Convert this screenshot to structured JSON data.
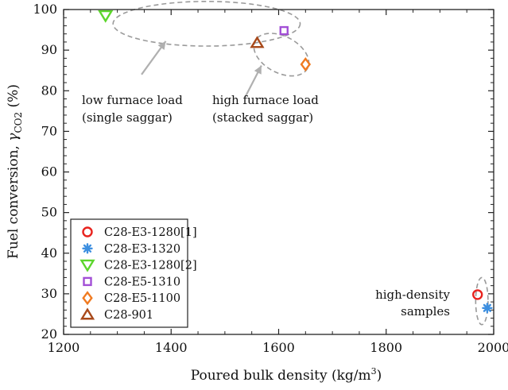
{
  "chart_data": {
    "type": "scatter",
    "xlabel_main": "Poured bulk density (kg/m",
    "xlabel_sup": "3",
    "xlabel_end": ")",
    "ylabel_main": "Fuel conversion, ",
    "ylabel_gamma": "γ",
    "ylabel_sub": "CO2",
    "ylabel_end": " (%)",
    "xlim": [
      1200,
      2000
    ],
    "ylim": [
      20,
      100
    ],
    "xticks": [
      1200,
      1400,
      1600,
      1800,
      2000
    ],
    "yticks": [
      20,
      30,
      40,
      50,
      60,
      70,
      80,
      90,
      100
    ],
    "grid": false,
    "legend_position": "bottom-left",
    "series": [
      {
        "name": "C28-E3-1280[1]",
        "marker": "circle",
        "color": "#e8231e",
        "points": [
          [
            1970,
            29.8
          ]
        ]
      },
      {
        "name": "C28-E3-1320",
        "marker": "asterisk",
        "color": "#3d8fe0",
        "points": [
          [
            1988,
            26.5
          ]
        ]
      },
      {
        "name": "C28-E3-1280[2]",
        "marker": "triangle-down",
        "color": "#5cd62c",
        "points": [
          [
            1278,
            98.5
          ]
        ]
      },
      {
        "name": "C28-E5-1310",
        "marker": "square",
        "color": "#a24fd6",
        "points": [
          [
            1610,
            94.8
          ]
        ]
      },
      {
        "name": "C28-E5-1100",
        "marker": "diamond",
        "color": "#f07a20",
        "points": [
          [
            1650,
            86.5
          ]
        ]
      },
      {
        "name": "C28-901",
        "marker": "triangle-up",
        "color": "#a8491a",
        "points": [
          [
            1560,
            91.8
          ]
        ]
      }
    ],
    "annotations": [
      {
        "id": "low",
        "lines": [
          "low furnace load",
          "(single saggar)"
        ]
      },
      {
        "id": "high",
        "lines": [
          "high furnace load",
          "(stacked saggar)"
        ]
      },
      {
        "id": "dense",
        "lines": [
          "high-density",
          "samples"
        ]
      }
    ]
  }
}
